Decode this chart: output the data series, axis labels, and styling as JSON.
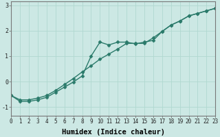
{
  "xlabel": "Humidex (Indice chaleur)",
  "background_color": "#cce8e4",
  "grid_color": "#b0d8d0",
  "line_color": "#2a7a6a",
  "line1_x": [
    0,
    1,
    2,
    3,
    4,
    5,
    6,
    7,
    8,
    9,
    10,
    11,
    12,
    13,
    14,
    15,
    16,
    17,
    18,
    19,
    20,
    21,
    22,
    23
  ],
  "line1_y": [
    -0.55,
    -0.78,
    -0.78,
    -0.72,
    -0.62,
    -0.42,
    -0.22,
    -0.02,
    0.22,
    1.0,
    1.55,
    1.44,
    1.55,
    1.55,
    1.48,
    1.55,
    1.62,
    1.97,
    2.22,
    2.38,
    2.58,
    2.68,
    2.78,
    2.88
  ],
  "line2_x": [
    0,
    1,
    2,
    3,
    4,
    5,
    6,
    7,
    8,
    9,
    10,
    11,
    12,
    13,
    14,
    15,
    16,
    17,
    18,
    19,
    20,
    21,
    22,
    23
  ],
  "line2_y": [
    -0.55,
    -0.72,
    -0.72,
    -0.65,
    -0.55,
    -0.35,
    -0.12,
    0.12,
    0.38,
    0.62,
    0.88,
    1.08,
    1.28,
    1.5,
    1.5,
    1.5,
    1.72,
    1.97,
    2.22,
    2.38,
    2.58,
    2.68,
    2.78,
    2.88
  ],
  "ylim": [
    -1.35,
    3.15
  ],
  "xlim": [
    0,
    23
  ],
  "yticks": [
    -1,
    0,
    1,
    2,
    3
  ],
  "xticks": [
    0,
    1,
    2,
    3,
    4,
    5,
    6,
    7,
    8,
    9,
    10,
    11,
    12,
    13,
    14,
    15,
    16,
    17,
    18,
    19,
    20,
    21,
    22,
    23
  ],
  "marker": "D",
  "markersize": 2.5,
  "linewidth": 1.0,
  "tick_fontsize": 5.5,
  "xlabel_fontsize": 7.5
}
